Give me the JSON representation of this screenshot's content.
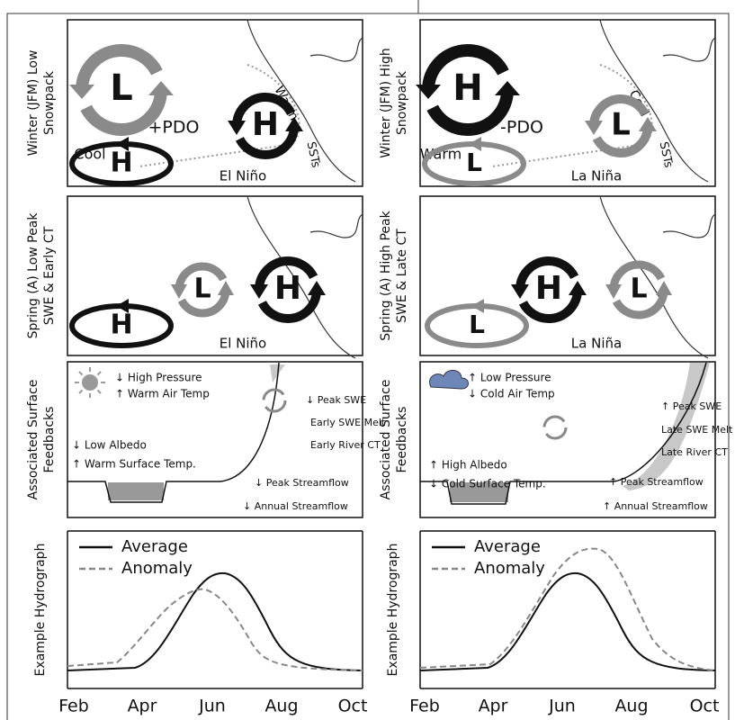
{
  "columns": [
    {
      "winter_label": [
        "Winter (JFM) Low",
        "Snowpack"
      ],
      "winter_texts": [
        "L",
        "+PDO",
        "Cool",
        "Warm",
        "SSTs",
        "El Niño",
        "H",
        "H"
      ],
      "spring_label": [
        "Spring (A) Low Peak",
        "SWE & Early CT"
      ],
      "spring_texts": [
        "L",
        "H",
        "H",
        "El Niño"
      ],
      "feedback_label": [
        "Associated Surface",
        "Feedbacks"
      ],
      "feedback_texts": [
        "↓ High Pressure",
        "↑ Warm Air Temp",
        "↓ Peak SWE",
        "Early SWE Melt",
        "Early River CT",
        "↓ Low Albedo",
        "↑ Warm Surface Temp.",
        "↓ Peak Streamflow",
        "↓ Annual Streamflow"
      ],
      "hydro_label": "Example Hydrograph",
      "legend": [
        "Average",
        "Anomaly"
      ],
      "months": [
        "Feb",
        "Apr",
        "Jun",
        "Aug",
        "Oct"
      ]
    },
    {
      "winter_label": [
        "Winter (JFM) High",
        "Snowpack"
      ],
      "winter_texts": [
        "H",
        "-PDO",
        "Warm",
        "Cool",
        "SSTs",
        "La Niña",
        "L",
        "L"
      ],
      "spring_label": [
        "Spring (A) High  Peak",
        "SWE & Late CT"
      ],
      "spring_texts": [
        "H",
        "L",
        "L",
        "La Niña"
      ],
      "feedback_label": [
        "Associated Surface",
        "Feedbacks"
      ],
      "feedback_texts": [
        "↑ Low Pressure",
        "↓ Cold Air Temp",
        "↑ Peak SWE",
        "Late SWE Melt",
        "Late River CT",
        "↑ High Albedo",
        "↓ Cold Surface Temp.",
        "↑ Peak Streamflow",
        "↑ Annual Streamflow"
      ],
      "hydro_label": "Example Hydrograph",
      "legend": [
        "Average",
        "Anomaly"
      ],
      "months": [
        "Feb",
        "Apr",
        "Jun",
        "Aug",
        "Oct"
      ]
    }
  ]
}
